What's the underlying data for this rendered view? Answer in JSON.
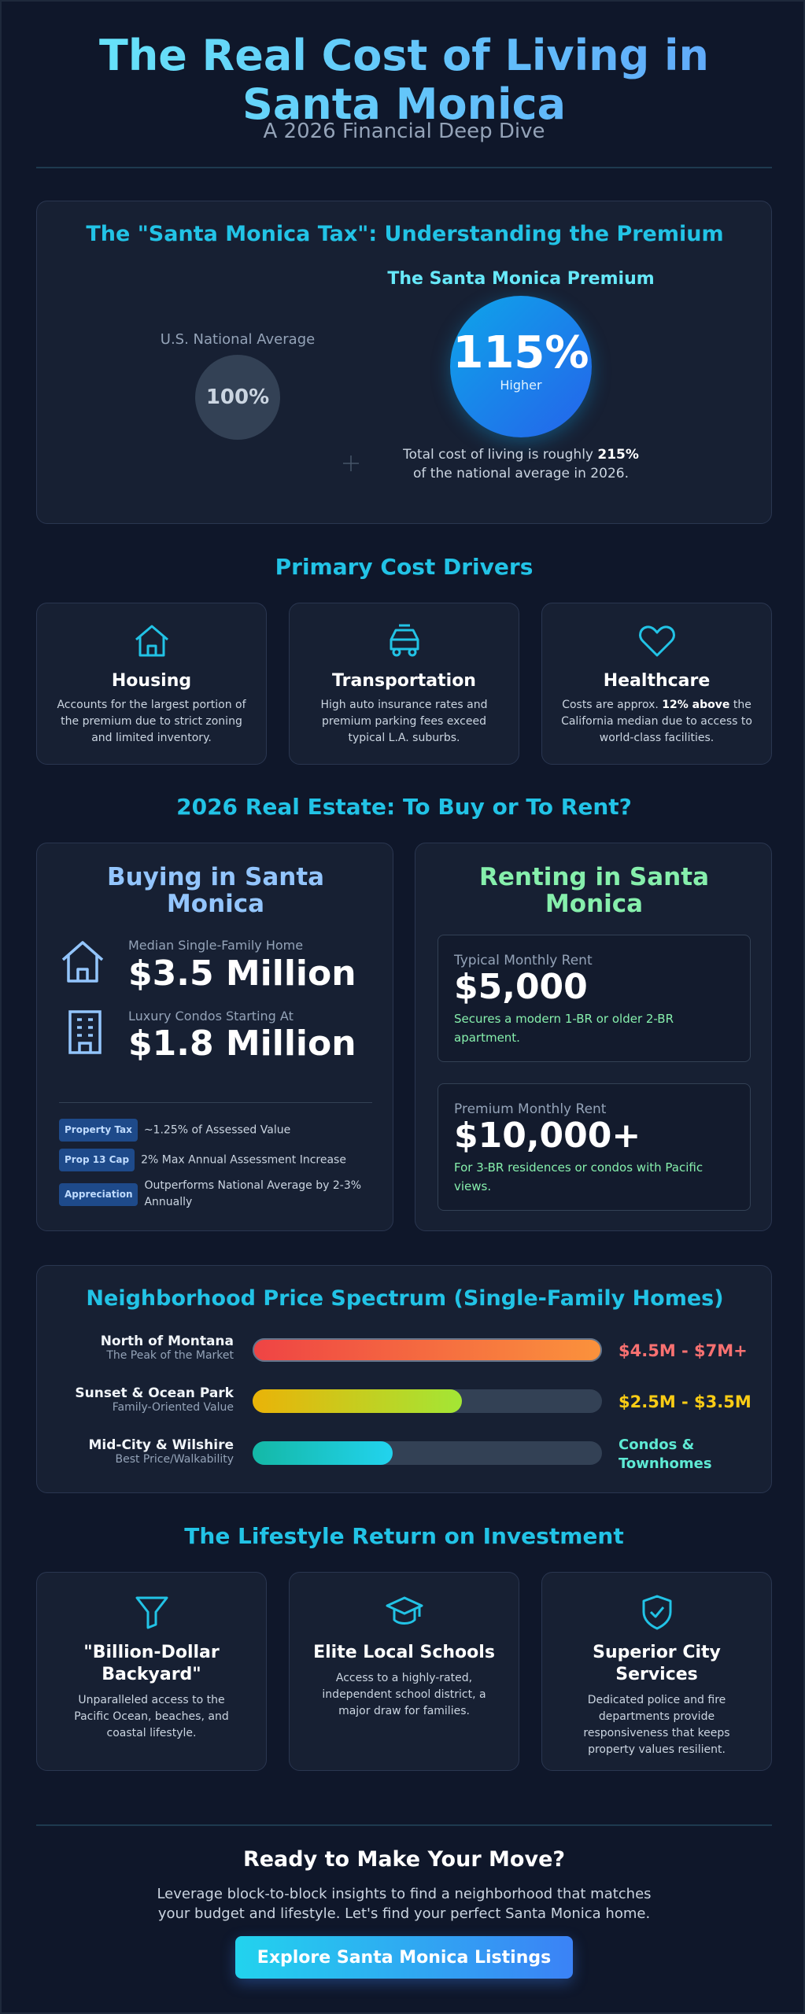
{
  "header": {
    "title": "The Real Cost of Living in Santa Monica",
    "subtitle": "A 2026 Financial Deep Dive"
  },
  "premium": {
    "title": "The \"Santa Monica Tax\": Understanding the Premium",
    "national_label": "U.S. National Average",
    "national_value": "100%",
    "premium_label": "The Santa Monica Premium",
    "premium_value": "115%",
    "premium_caption": "Higher",
    "note": {
      "before": "Total cost of living is roughly ",
      "bold": "215%",
      "after": " of the national average in 2026."
    }
  },
  "drivers": {
    "title": "Primary Cost Drivers",
    "items": [
      {
        "title": "Housing",
        "text": "Accounts for the largest portion of the premium due to strict zoning and limited inventory."
      },
      {
        "title": "Transportation",
        "text": "High auto insurance rates and premium parking fees exceed typical L.A. suburbs."
      },
      {
        "title": "Healthcare",
        "text_before": "Costs are approx. ",
        "text_bold": "12% above",
        "text_after": " the California median due to access to world-class facilities."
      }
    ]
  },
  "real_estate": {
    "title": "2026 Real Estate: To Buy or To Rent?",
    "buying": {
      "title": "Buying in Santa Monica",
      "items": [
        {
          "label": "Median Single-Family Home",
          "value": "$3.5 Million"
        },
        {
          "label": "Luxury Condos Starting At",
          "value": "$1.8 Million"
        }
      ],
      "facts": [
        {
          "tag": "Property Tax",
          "text": "~1.25% of Assessed Value"
        },
        {
          "tag": "Prop 13 Cap",
          "text": "2% Max Annual Assessment Increase"
        },
        {
          "tag": "Appreciation",
          "text": "Outperforms National Average by 2-3% Annually"
        }
      ]
    },
    "renting": {
      "title": "Renting in Santa Monica",
      "items": [
        {
          "label": "Typical Monthly Rent",
          "value": "$5,000",
          "note": "Secures a modern 1-BR or older 2-BR apartment."
        },
        {
          "label": "Premium Monthly Rent",
          "value": "$10,000+",
          "note": "For 3-BR residences or condos with Pacific views."
        }
      ]
    }
  },
  "spectrum": {
    "title": "Neighborhood Price Spectrum (Single-Family Homes)",
    "rows": [
      {
        "name": "North of Montana",
        "subtitle": "The Peak of the Market",
        "price": "$4.5M - $7M+"
      },
      {
        "name": "Sunset & Ocean Park",
        "subtitle": "Family-Oriented Value",
        "price": "$2.5M - $3.5M"
      },
      {
        "name": "Mid-City & Wilshire",
        "subtitle": "Best Price/Walkability",
        "price": "Condos & Townhomes"
      }
    ]
  },
  "lifestyle": {
    "title": "The Lifestyle Return on Investment",
    "items": [
      {
        "title": "\"Billion-Dollar Backyard\"",
        "text": "Unparalleled access to the Pacific Ocean, beaches, and coastal lifestyle."
      },
      {
        "title": "Elite Local Schools",
        "text": "Access to a highly-rated, independent school district, a major draw for families."
      },
      {
        "title": "Superior City Services",
        "text": "Dedicated police and fire departments provide responsiveness that keeps property values resilient."
      }
    ]
  },
  "cta": {
    "title": "Ready to Make Your Move?",
    "text": "Leverage block-to-block insights to find a neighborhood that matches your budget and lifestyle. Let's find your perfect Santa Monica home.",
    "button": "Explore Santa Monica Listings"
  }
}
